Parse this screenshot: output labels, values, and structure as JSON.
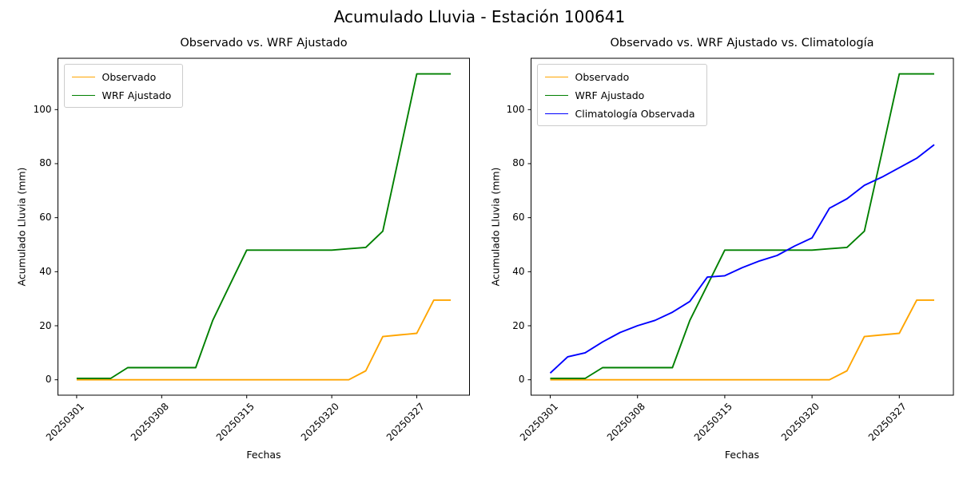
{
  "figure": {
    "title": "Acumulado Lluvia - Estación 100641"
  },
  "colors": {
    "observado": "#FFA500",
    "wrf_ajustado": "#008000",
    "climatologia": "#0000FF",
    "axis": "#000000",
    "legend_border": "#CCCCCC",
    "background": "#FFFFFF"
  },
  "chart_data": [
    {
      "type": "line",
      "title": "Observado vs. WRF Ajustado",
      "xlabel": "Fechas",
      "ylabel": "Acumulado Lluvia (mm)",
      "x": [
        0,
        1,
        2,
        3,
        4,
        5,
        6,
        7,
        8,
        9,
        10,
        11,
        12,
        13,
        14,
        15,
        16,
        17,
        18,
        19,
        20,
        21,
        22
      ],
      "xtick_positions": [
        0,
        5,
        10,
        15,
        20
      ],
      "xtick_labels": [
        "20250301",
        "20250308",
        "20250315",
        "20250320",
        "20250327"
      ],
      "yticks": [
        0,
        20,
        40,
        60,
        80,
        100
      ],
      "xlim": [
        -1.1,
        23.1
      ],
      "ylim": [
        -5.7,
        119
      ],
      "grid": false,
      "legend_position": "upper left",
      "series": [
        {
          "name": "Observado",
          "color": "#FFA500",
          "values": [
            0,
            0,
            0,
            0,
            0,
            0,
            0,
            0,
            0,
            0,
            0,
            0,
            0,
            0,
            0,
            0,
            0,
            3.3,
            16,
            16.6,
            17.2,
            29.5,
            29.5
          ]
        },
        {
          "name": "WRF Ajustado",
          "color": "#008000",
          "values": [
            0.5,
            0.5,
            0.5,
            4.5,
            4.5,
            4.5,
            4.5,
            4.5,
            22,
            35,
            48,
            48,
            48,
            48,
            48,
            48,
            48.5,
            49,
            55,
            84,
            113.2,
            113.2,
            113.2
          ]
        }
      ]
    },
    {
      "type": "line",
      "title": "Observado vs. WRF Ajustado vs. Climatología",
      "xlabel": "Fechas",
      "ylabel": "Acumulado Lluvia (mm)",
      "x": [
        0,
        1,
        2,
        3,
        4,
        5,
        6,
        7,
        8,
        9,
        10,
        11,
        12,
        13,
        14,
        15,
        16,
        17,
        18,
        19,
        20,
        21,
        22
      ],
      "xtick_positions": [
        0,
        5,
        10,
        15,
        20
      ],
      "xtick_labels": [
        "20250301",
        "20250308",
        "20250315",
        "20250320",
        "20250327"
      ],
      "yticks": [
        0,
        20,
        40,
        60,
        80,
        100
      ],
      "xlim": [
        -1.1,
        23.1
      ],
      "ylim": [
        -5.7,
        119
      ],
      "grid": false,
      "legend_position": "upper left",
      "series": [
        {
          "name": "Observado",
          "color": "#FFA500",
          "values": [
            0,
            0,
            0,
            0,
            0,
            0,
            0,
            0,
            0,
            0,
            0,
            0,
            0,
            0,
            0,
            0,
            0,
            3.3,
            16,
            16.6,
            17.2,
            29.5,
            29.5
          ]
        },
        {
          "name": "WRF Ajustado",
          "color": "#008000",
          "values": [
            0.5,
            0.5,
            0.5,
            4.5,
            4.5,
            4.5,
            4.5,
            4.5,
            22,
            35,
            48,
            48,
            48,
            48,
            48,
            48,
            48.5,
            49,
            55,
            84,
            113.2,
            113.2,
            113.2
          ]
        },
        {
          "name": "Climatología Observada",
          "color": "#0000FF",
          "values": [
            2.5,
            8.5,
            10,
            14,
            17.5,
            20,
            22,
            25,
            29,
            38,
            38.5,
            41.5,
            44,
            46,
            49.5,
            52.5,
            63.5,
            67,
            72,
            75,
            78.5,
            82,
            87
          ]
        }
      ]
    }
  ]
}
